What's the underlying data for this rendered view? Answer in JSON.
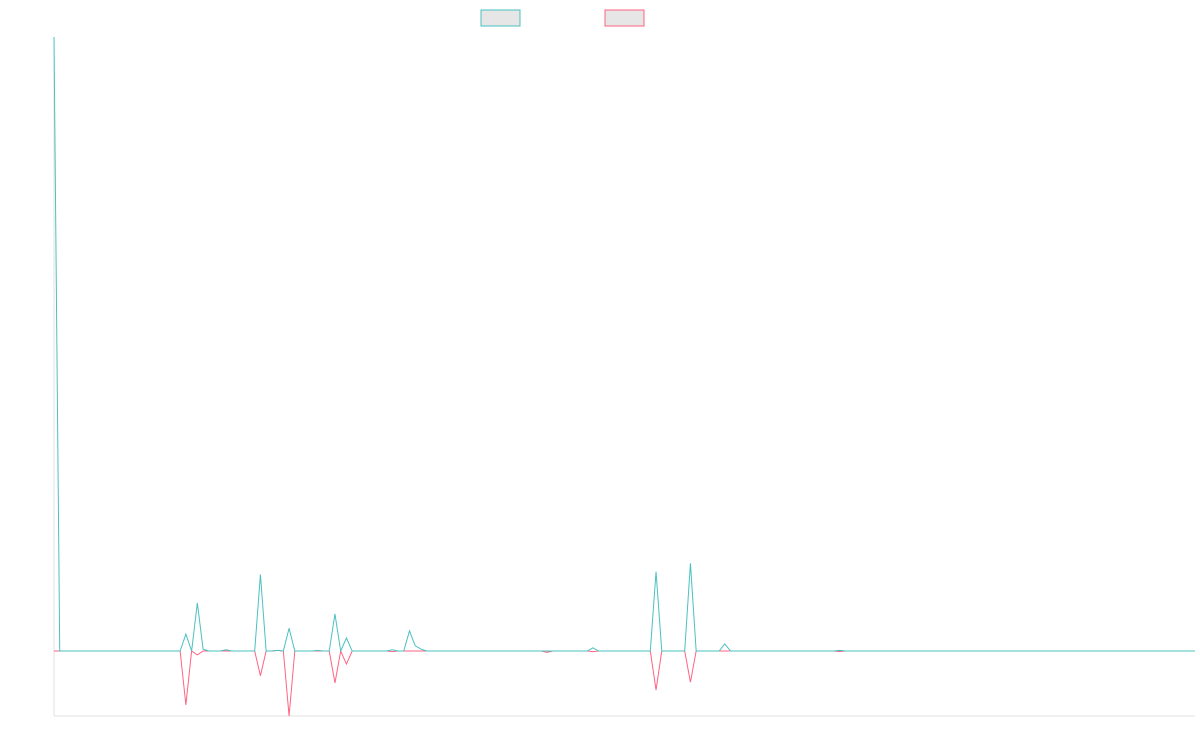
{
  "chart_data": {
    "type": "line",
    "ylim": [
      -1,
      9.45
    ],
    "series": [
      {
        "color": "#4bc0c0",
        "values": [
          9.45,
          0,
          0,
          0,
          0,
          0,
          0,
          0,
          0,
          0,
          0,
          0,
          0,
          0,
          0,
          0,
          0,
          0,
          0,
          0,
          0,
          0,
          0,
          0.26,
          0,
          0.74,
          0.03,
          0,
          0,
          0,
          0.02,
          0,
          0,
          0,
          0,
          0,
          1.18,
          0,
          0,
          0.01,
          0,
          0.35,
          0,
          0,
          0,
          0,
          0.01,
          0,
          0,
          0.57,
          0,
          0.2,
          0,
          0,
          0,
          0,
          0,
          0,
          0,
          0.02,
          0,
          0,
          0.31,
          0.08,
          0.03,
          0,
          0,
          0,
          0,
          0,
          0,
          0,
          0,
          0,
          0,
          0,
          0,
          0,
          0,
          0,
          0,
          0,
          0,
          0,
          0,
          0,
          0,
          0,
          0,
          0,
          0,
          0,
          0,
          0,
          0.05,
          0,
          0,
          0,
          0,
          0,
          0,
          0,
          0,
          0,
          0,
          1.22,
          0,
          0,
          0,
          0,
          0,
          1.35,
          0,
          0,
          0,
          0,
          0,
          0.11,
          0,
          0,
          0,
          0,
          0,
          0,
          0,
          0,
          0,
          0,
          0,
          0,
          0,
          0,
          0,
          0,
          0,
          0,
          0,
          0.01,
          0,
          0,
          0,
          0,
          0,
          0,
          0,
          0,
          0,
          0,
          0,
          0,
          0,
          0,
          0,
          0,
          0,
          0,
          0,
          0,
          0,
          0,
          0,
          0,
          0,
          0,
          0,
          0,
          0,
          0,
          0,
          0,
          0,
          0,
          0,
          0,
          0,
          0,
          0,
          0,
          0,
          0,
          0,
          0,
          0,
          0,
          0,
          0,
          0,
          0,
          0,
          0,
          0,
          0,
          0,
          0,
          0,
          0,
          0,
          0,
          0,
          0
        ]
      },
      {
        "color": "#ff6384",
        "values": [
          0,
          0,
          0,
          0,
          0,
          0,
          0,
          0,
          0,
          0,
          0,
          0,
          0,
          0,
          0,
          0,
          0,
          0,
          0,
          0,
          0,
          0,
          0,
          -0.83,
          0,
          -0.06,
          0,
          0,
          0,
          0,
          0,
          0,
          0,
          0,
          0,
          0,
          -0.38,
          0,
          0,
          0.01,
          0,
          -1,
          0,
          0,
          0,
          0,
          0,
          0,
          0,
          -0.49,
          0,
          -0.2,
          0,
          0,
          0,
          0,
          0,
          0,
          0,
          -0.01,
          0,
          0,
          0,
          0,
          0,
          0,
          0,
          0,
          0,
          0,
          0,
          0,
          0,
          0,
          0,
          0,
          0,
          0,
          0,
          0,
          0,
          0,
          0,
          0,
          0,
          0,
          -0.02,
          0,
          0,
          0,
          0,
          0,
          0,
          0,
          -0.01,
          0,
          0,
          0,
          0,
          0,
          0,
          0,
          0,
          0,
          0,
          -0.6,
          0,
          0,
          0,
          0,
          0,
          -0.48,
          0,
          0,
          0,
          0,
          0,
          0,
          0,
          0,
          0,
          0,
          0,
          0,
          0,
          0,
          0,
          0,
          0,
          0,
          0,
          0,
          0,
          0,
          0,
          0,
          0,
          -0.01,
          0,
          0,
          0,
          0,
          0,
          0,
          0,
          0,
          0,
          0,
          0,
          0,
          0,
          0,
          0,
          0,
          0,
          0,
          0,
          0,
          0,
          0,
          0,
          0,
          0,
          0,
          0,
          0,
          0,
          0,
          0,
          0,
          0,
          0,
          0,
          0,
          0,
          0,
          0,
          0,
          0,
          0,
          0,
          0,
          0,
          0,
          0,
          0,
          0,
          0,
          0,
          0,
          0,
          0,
          0,
          0,
          0,
          0,
          0,
          0,
          0,
          0
        ]
      }
    ]
  }
}
